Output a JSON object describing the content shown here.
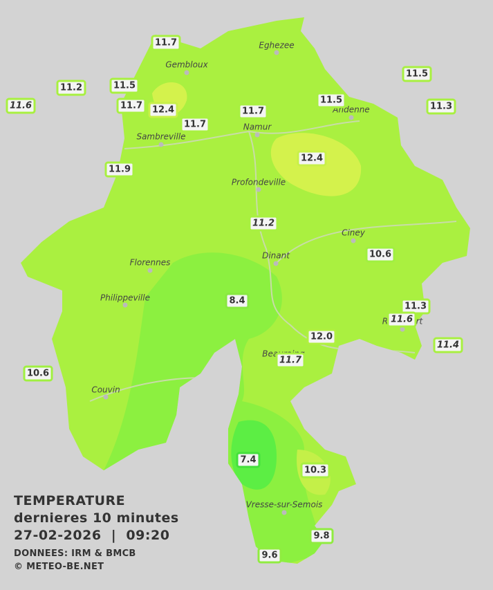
{
  "title": {
    "lines": [
      "TEMPERATURE",
      "dernieres 10 minutes",
      "27-02-2026  |  09:20"
    ],
    "credits": [
      "DONNEES: IRM & BMCB",
      "© METEO-BE.NET"
    ]
  },
  "cities": [
    "Eghezee",
    "Gembloux",
    "Andenne",
    "Namur",
    "Sambreville",
    "Profondeville",
    "Ciney",
    "Dinant",
    "Florennes",
    "Philippeville",
    "Beauraing",
    "Rochefort",
    "Couvin",
    "Vresse-sur-Semois"
  ],
  "stations": [
    {
      "label": "11.7",
      "italic": false,
      "color": "#a8f040"
    },
    {
      "label": "11.2",
      "italic": false,
      "color": "#a8f040"
    },
    {
      "label": "11.5",
      "italic": false,
      "color": "#a8f040"
    },
    {
      "label": "11.6",
      "italic": true,
      "color": "#a8f040"
    },
    {
      "label": "11.7",
      "italic": false,
      "color": "#a8f040"
    },
    {
      "label": "12.4",
      "italic": false,
      "color": "#c8f048"
    },
    {
      "label": "11.7",
      "italic": false,
      "color": "#a8f040"
    },
    {
      "label": "11.7",
      "italic": false,
      "color": "#a8f040"
    },
    {
      "label": "11.5",
      "italic": false,
      "color": "#a8f040"
    },
    {
      "label": "11.5",
      "italic": false,
      "color": "#a8f040"
    },
    {
      "label": "11.3",
      "italic": false,
      "color": "#a8f040"
    },
    {
      "label": "11.9",
      "italic": false,
      "color": "#a8f040"
    },
    {
      "label": "12.4",
      "italic": false,
      "color": "#c8f048"
    },
    {
      "label": "11.2",
      "italic": true,
      "color": "#a8f040"
    },
    {
      "label": "10.6",
      "italic": false,
      "color": "#a0f040"
    },
    {
      "label": "8.4",
      "italic": false,
      "color": "#88e840"
    },
    {
      "label": "11.3",
      "italic": false,
      "color": "#a8f040"
    },
    {
      "label": "11.6",
      "italic": true,
      "color": "#a8f040"
    },
    {
      "label": "11.4",
      "italic": true,
      "color": "#a8f040"
    },
    {
      "label": "12.0",
      "italic": false,
      "color": "#b0f040"
    },
    {
      "label": "11.7",
      "italic": true,
      "color": "#a8f040"
    },
    {
      "label": "10.6",
      "italic": false,
      "color": "#a0f040"
    },
    {
      "label": "7.4",
      "italic": false,
      "color": "#44e03c"
    },
    {
      "label": "10.3",
      "italic": false,
      "color": "#a8f040"
    },
    {
      "label": "9.8",
      "italic": false,
      "color": "#90ec40"
    },
    {
      "label": "9.6",
      "italic": false,
      "color": "#90ec40"
    }
  ]
}
